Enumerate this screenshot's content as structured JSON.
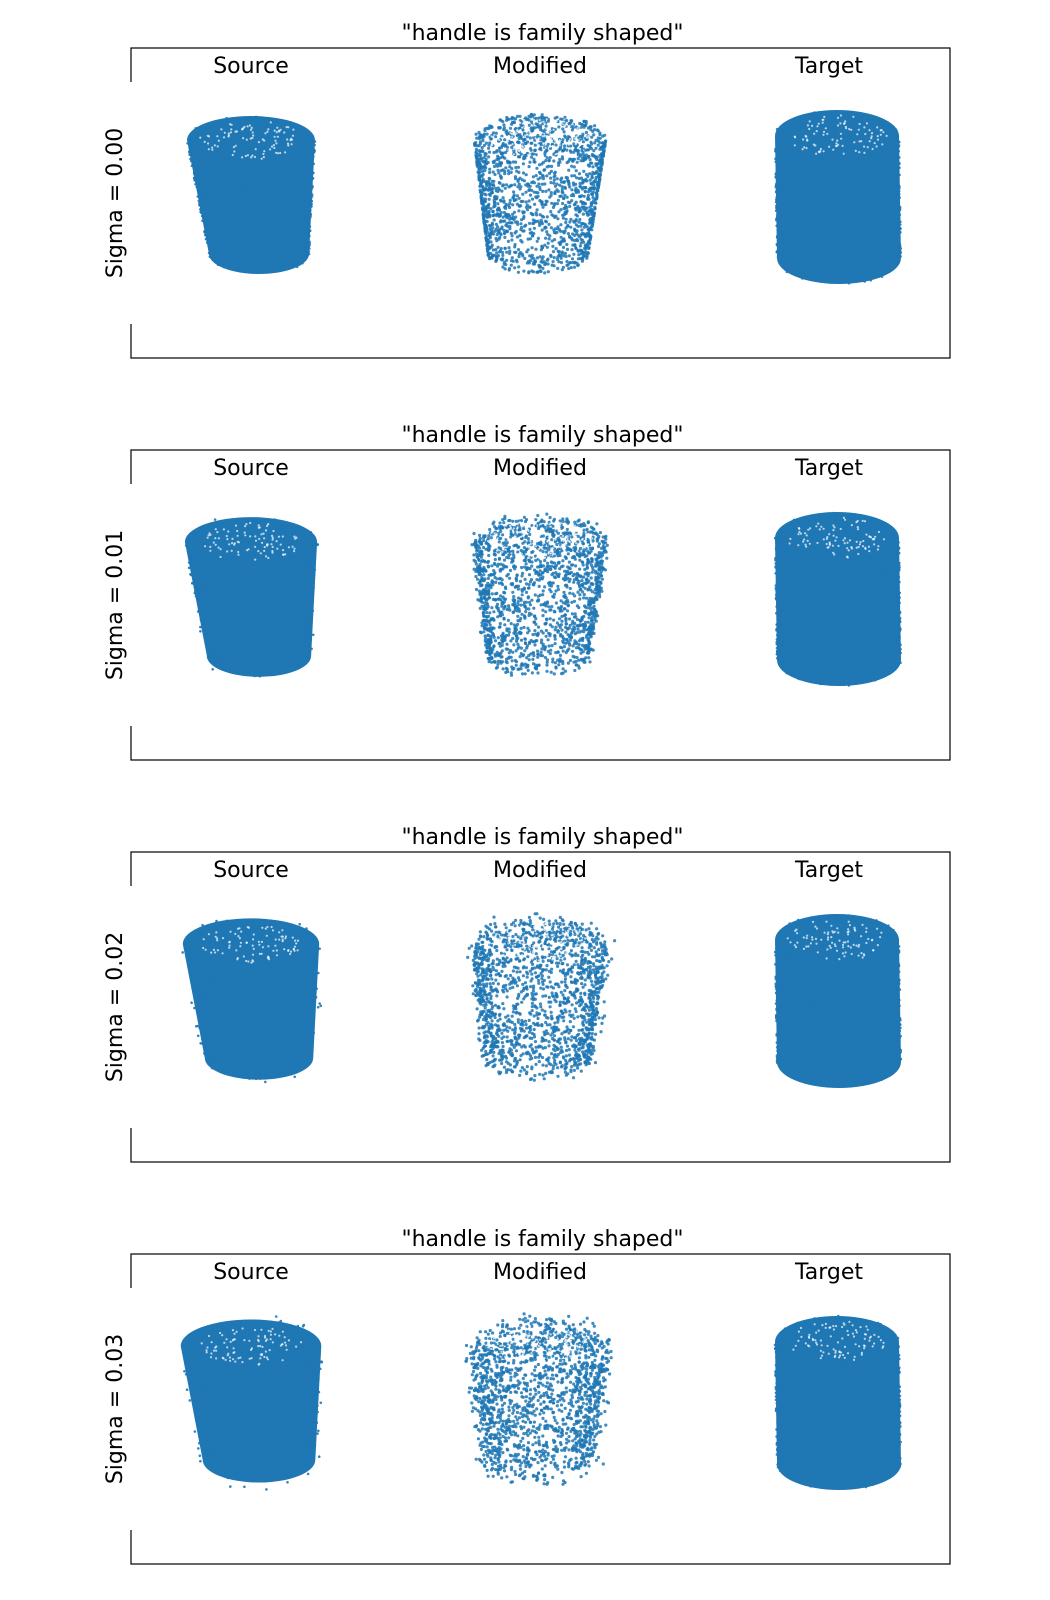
{
  "figure": {
    "point_color": "#1f77b4",
    "panels": [
      {
        "title": "\"handle is family shaped\"",
        "ylabel": "Sigma = 0.00",
        "sigma": 0.0,
        "columns": [
          "Source",
          "Modified",
          "Target"
        ]
      },
      {
        "title": "\"handle is family shaped\"",
        "ylabel": "Sigma = 0.01",
        "sigma": 0.01,
        "columns": [
          "Source",
          "Modified",
          "Target"
        ]
      },
      {
        "title": "\"handle is family shaped\"",
        "ylabel": "Sigma = 0.02",
        "sigma": 0.02,
        "columns": [
          "Source",
          "Modified",
          "Target"
        ]
      },
      {
        "title": "\"handle is family shaped\"",
        "ylabel": "Sigma = 0.03",
        "sigma": 0.03,
        "columns": [
          "Source",
          "Modified",
          "Target"
        ]
      }
    ]
  },
  "chart_data": [
    {
      "type": "scatter",
      "title": "\"handle is family shaped\"",
      "ylabel": "Sigma = 0.00",
      "series": [
        {
          "label": "Source",
          "shape": "tapered-cylinder point cloud",
          "density": "dense"
        },
        {
          "label": "Modified",
          "shape": "tapered-cylinder point cloud",
          "density": "sparse"
        },
        {
          "label": "Target",
          "shape": "cylinder point cloud",
          "density": "dense"
        }
      ],
      "grid": false,
      "legend": "none"
    },
    {
      "type": "scatter",
      "title": "\"handle is family shaped\"",
      "ylabel": "Sigma = 0.01",
      "series": [
        {
          "label": "Source",
          "shape": "tapered-cylinder point cloud",
          "density": "dense"
        },
        {
          "label": "Modified",
          "shape": "tapered-cylinder point cloud",
          "density": "sparse"
        },
        {
          "label": "Target",
          "shape": "cylinder point cloud",
          "density": "dense"
        }
      ],
      "grid": false,
      "legend": "none"
    },
    {
      "type": "scatter",
      "title": "\"handle is family shaped\"",
      "ylabel": "Sigma = 0.02",
      "series": [
        {
          "label": "Source",
          "shape": "tapered-cylinder point cloud",
          "density": "dense"
        },
        {
          "label": "Modified",
          "shape": "tapered-cylinder point cloud",
          "density": "sparse"
        },
        {
          "label": "Target",
          "shape": "cylinder point cloud",
          "density": "dense"
        }
      ],
      "grid": false,
      "legend": "none"
    },
    {
      "type": "scatter",
      "title": "\"handle is family shaped\"",
      "ylabel": "Sigma = 0.03",
      "series": [
        {
          "label": "Source",
          "shape": "tapered-cylinder point cloud",
          "density": "dense"
        },
        {
          "label": "Modified",
          "shape": "tapered-cylinder point cloud",
          "density": "sparse"
        },
        {
          "label": "Target",
          "shape": "cylinder point cloud",
          "density": "dense"
        }
      ],
      "grid": false,
      "legend": "none"
    }
  ]
}
